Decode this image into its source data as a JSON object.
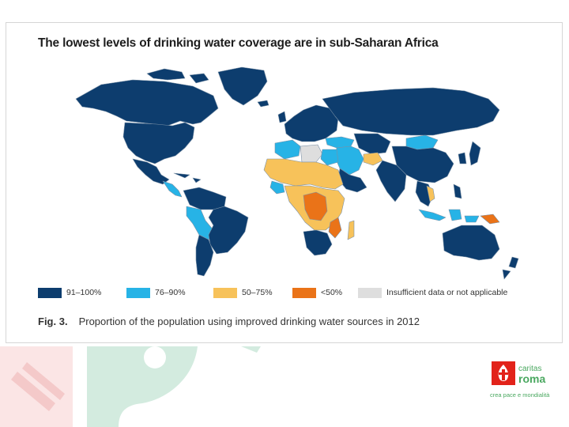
{
  "figure": {
    "title": "The lowest levels of drinking water coverage are in sub-Saharan Africa",
    "caption_number": "Fig. 3.",
    "caption_text": "Proportion of the population using improved drinking water sources in 2012"
  },
  "legend": {
    "items": [
      {
        "label": "91–100%",
        "color": "#0d3d6e"
      },
      {
        "label": "76–90%",
        "color": "#27b3e6"
      },
      {
        "label": "50–75%",
        "color": "#f7c25a"
      },
      {
        "label": "<50%",
        "color": "#ea7318"
      },
      {
        "label": "Insufficient data or not applicable",
        "color": "#dedede"
      }
    ]
  },
  "colors": {
    "map_ocean": "#ffffff",
    "map_border": "#7a90a6",
    "background_pink": "#f8dede",
    "background_green": "#c8e6d6",
    "logo_red": "#e2231a",
    "logo_green": "#4aa860"
  },
  "logo": {
    "brand": "caritas",
    "city": "roma",
    "tagline": "crea pace e mondialità"
  }
}
